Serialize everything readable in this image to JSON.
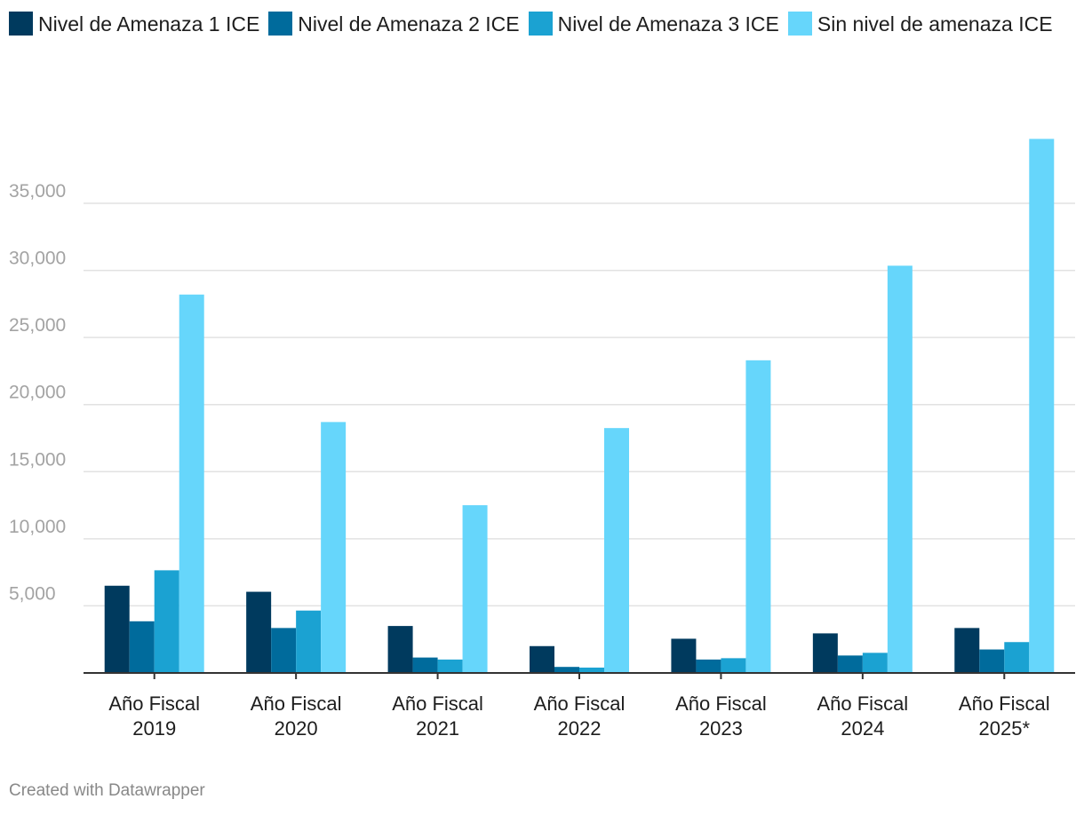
{
  "chart_data": {
    "type": "bar",
    "title": "",
    "xlabel": "",
    "ylabel": "",
    "ylim": [
      0,
      40000
    ],
    "y_ticks": [
      5000,
      10000,
      15000,
      20000,
      25000,
      30000,
      35000
    ],
    "y_tick_labels": [
      "5,000",
      "10,000",
      "15,000",
      "20,000",
      "25,000",
      "30,000",
      "35,000"
    ],
    "grid": true,
    "legend_position": "top-left",
    "categories": [
      [
        "Año Fiscal",
        "2019"
      ],
      [
        "Año Fiscal",
        "2020"
      ],
      [
        "Año Fiscal",
        "2021"
      ],
      [
        "Año Fiscal",
        "2022"
      ],
      [
        "Año Fiscal",
        "2023"
      ],
      [
        "Año Fiscal",
        "2024"
      ],
      [
        "Año Fiscal",
        "2025*"
      ]
    ],
    "series": [
      {
        "name": "Nivel de Amenaza 1 ICE",
        "color": "#003a5e",
        "values": [
          6500,
          6050,
          3500,
          2000,
          2550,
          2950,
          3350
        ]
      },
      {
        "name": "Nivel de Amenaza 2 ICE",
        "color": "#006b9c",
        "values": [
          3850,
          3350,
          1150,
          450,
          1000,
          1300,
          1750
        ]
      },
      {
        "name": "Nivel de Amenaza 3 ICE",
        "color": "#1ba2d2",
        "values": [
          7650,
          4650,
          1000,
          400,
          1100,
          1500,
          2300
        ]
      },
      {
        "name": "Sin nivel de amenaza ICE",
        "color": "#66d6fb",
        "values": [
          28200,
          18700,
          12500,
          18250,
          23300,
          30350,
          39800
        ]
      }
    ]
  },
  "footer": {
    "credit": "Created with Datawrapper"
  }
}
